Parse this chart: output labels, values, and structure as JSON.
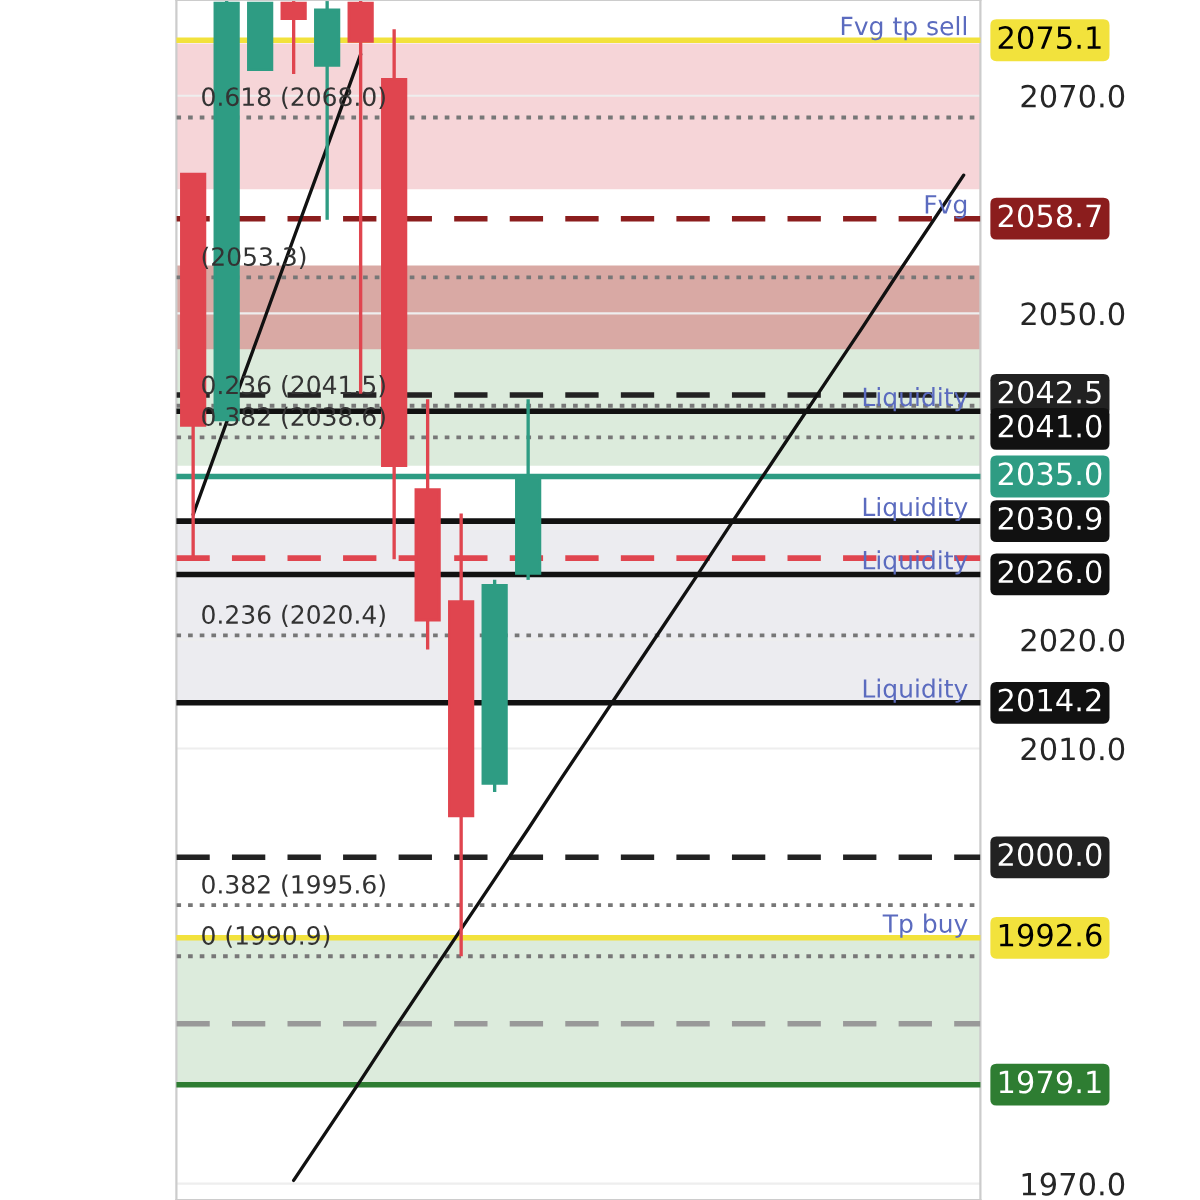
{
  "chart_data": {
    "type": "candlestick",
    "categories": [
      null,
      null,
      null,
      null,
      null,
      null,
      null,
      null,
      null,
      null,
      null,
      null,
      null,
      null,
      null,
      null,
      null,
      null,
      null,
      null,
      null,
      null,
      null,
      null
    ],
    "ohlc": [
      [
        2062.8,
        2062.8,
        2027.4,
        2039.7
      ],
      [
        2040.2,
        2078.7,
        2040.2,
        2078.5
      ],
      [
        2072.4,
        2078.5,
        2072.4,
        2078.5
      ],
      [
        2078.5,
        2078.7,
        2072.0,
        2077.1
      ],
      [
        2072.8,
        2078.7,
        2058.6,
        2077.9
      ],
      [
        2078.5,
        2078.7,
        2042.6,
        2075.0
      ],
      [
        2071.5,
        2076.1,
        2027.4,
        2036.0
      ],
      [
        2033.8,
        2042.1,
        2019.1,
        2021.8
      ],
      [
        2023.5,
        2031.6,
        1990.9,
        2003.8
      ],
      [
        2006.8,
        2025.5,
        2006.0,
        2025.0
      ],
      [
        2026.1,
        2042.1,
        2025.5,
        2035.0
      ],
      null,
      null,
      null,
      null,
      null,
      null,
      null,
      null,
      null,
      null,
      null,
      null,
      null
    ],
    "colors": [
      "#e0454f",
      "#2e9c83",
      "#2e9c83",
      "#e0454f",
      "#2e9c83",
      "#e0454f",
      "#e0454f",
      "#e0454f",
      "#e0454f",
      "#2e9c83",
      "#2e9c83",
      null,
      null,
      null,
      null,
      null,
      null,
      null,
      null,
      null,
      null,
      null,
      null,
      null
    ],
    "series": [
      {
        "type": "line",
        "color": "#111111",
        "values": [
          2031.5,
          2040.0,
          2048.4,
          2056.9,
          2065.3,
          2073.8,
          null,
          null,
          null,
          null,
          null,
          null,
          null,
          null,
          null,
          null,
          null,
          null,
          null,
          null,
          null,
          null,
          null,
          null
        ]
      },
      {
        "type": "line",
        "color": "#111111",
        "values": [
          null,
          null,
          null,
          1970.3,
          1974.9,
          1979.5,
          1984.2,
          1988.8,
          1993.4,
          1998.0,
          2002.6,
          2007.3,
          2011.9,
          2016.5,
          2021.1,
          2025.7,
          2030.4,
          2035.0,
          2039.6,
          2044.2,
          2048.8,
          2053.5,
          2058.1,
          2062.7
        ]
      }
    ],
    "ylim": [
      1968.5,
      2078.8
    ],
    "yticks": [
      {
        "value": 1970,
        "label": "1970.0"
      },
      {
        "value": 2010,
        "label": "2010.0"
      },
      {
        "value": 2020,
        "label": "2020.0"
      },
      {
        "value": 2050,
        "label": "2050.0"
      },
      {
        "value": 2070,
        "label": "2070.0"
      }
    ],
    "tick_labels": "y",
    "grid": "y",
    "legend": false,
    "bands": [
      {
        "axis": "y",
        "from": 2061.4,
        "to": 2074.8,
        "color": "#f6d5d8"
      },
      {
        "axis": "y",
        "from": 2036.0,
        "to": 2053.1,
        "color": "#dcebdc"
      },
      {
        "axis": "y",
        "from": 2046.7,
        "to": 2054.4,
        "color": "#d9a9a4"
      },
      {
        "axis": "y",
        "from": 2014.2,
        "to": 2030.9,
        "color": "#ececf0"
      },
      {
        "axis": "y",
        "from": 1979.1,
        "to": 1992.6,
        "color": "#dcebdc"
      }
    ],
    "ref_lines": [
      {
        "axis": "y",
        "value": 2075.1,
        "label": "2075.1",
        "color": "#f2e23c",
        "line_style": "solid"
      },
      {
        "axis": "y",
        "value": 2058.7,
        "label": "2058.7",
        "color": "#8b1d1d",
        "line_style": "dashed"
      },
      {
        "axis": "y",
        "value": 2042.5,
        "label": "2042.5",
        "color": "#222222",
        "line_style": "dashed"
      },
      {
        "axis": "y",
        "value": 2041.0,
        "label": "2041.0",
        "color": "#111111",
        "line_style": "solid"
      },
      {
        "axis": "y",
        "value": 2035.0,
        "label": "2035.0",
        "color": "#2e9c83",
        "line_style": "solid"
      },
      {
        "axis": "y",
        "value": 2030.9,
        "label": "2030.9",
        "color": "#111111",
        "line_style": "solid"
      },
      {
        "axis": "y",
        "value": 2026.0,
        "label": "2026.0",
        "color": "#111111",
        "line_style": "solid"
      },
      {
        "axis": "y",
        "value": 2014.2,
        "label": "2014.2",
        "color": "#111111",
        "line_style": "solid"
      },
      {
        "axis": "y",
        "value": 2000.0,
        "label": "2000.0",
        "color": "#222222",
        "line_style": "dashed"
      },
      {
        "axis": "y",
        "value": 1992.6,
        "label": "1992.6",
        "color": "#f2e23c",
        "line_style": "solid"
      },
      {
        "axis": "y",
        "value": 1979.1,
        "label": "1979.1",
        "color": "#2e7d32",
        "line_style": "solid"
      },
      {
        "axis": "y",
        "value": 2027.5,
        "color": "#e0454f",
        "line_style": "dashed"
      },
      {
        "axis": "y",
        "value": 1984.7,
        "color": "#999999",
        "line_style": "dashed"
      },
      {
        "axis": "y",
        "value": 2068.0,
        "label": "0.618 (2068.0)",
        "color": "#777777",
        "line_style": "dotted"
      },
      {
        "axis": "y",
        "value": 2053.3,
        "label": "(2053.3)",
        "color": "#777777",
        "line_style": "dotted"
      },
      {
        "axis": "y",
        "value": 2041.5,
        "label": "0.236 (2041.5)",
        "color": "#777777",
        "line_style": "dotted"
      },
      {
        "axis": "y",
        "value": 2038.6,
        "label": "0.382 (2038.6)",
        "color": "#777777",
        "line_style": "dotted"
      },
      {
        "axis": "y",
        "value": 2020.4,
        "label": "0.236 (2020.4)",
        "color": "#777777",
        "line_style": "dotted"
      },
      {
        "axis": "y",
        "value": 1995.6,
        "label": "0.382 (1995.6)",
        "color": "#777777",
        "line_style": "dotted"
      },
      {
        "axis": "y",
        "value": 1990.9,
        "label": "0 (1990.9)",
        "color": "#777777",
        "line_style": "dotted"
      }
    ],
    "annotations": [
      {
        "text": "Fvg tp sell",
        "y": 2075.1
      },
      {
        "text": "Fvg",
        "y": 2058.7
      },
      {
        "text": "Liquidity",
        "y": 2041.0
      },
      {
        "text": "Liquidity",
        "y": 2030.9
      },
      {
        "text": "Liquidity",
        "y": 2026.0
      },
      {
        "text": "Liquidity",
        "y": 2014.2
      },
      {
        "text": "Tp buy",
        "y": 1992.6
      }
    ]
  }
}
